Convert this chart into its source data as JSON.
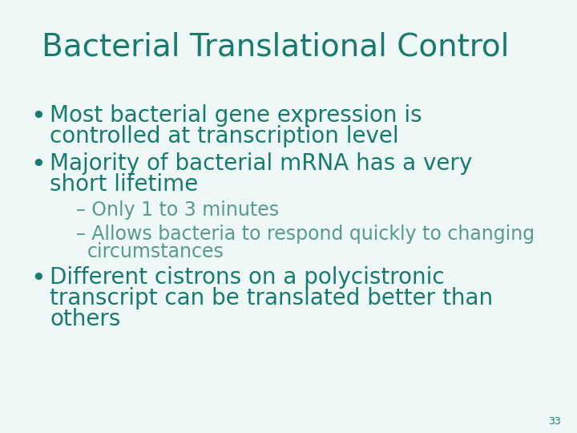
{
  "title": "Bacterial Translational Control",
  "title_color": "#1a7a6e",
  "title_fontsize": 28,
  "background_color": "#eef8f6",
  "text_color": "#1a7a6e",
  "sub_text_color": "#5a9a8a",
  "bullet_color": "#1a7a6e",
  "page_number": "33",
  "items": [
    {
      "level": 1,
      "lines": [
        "Most bacterial gene expression is",
        "controlled at transcription level"
      ],
      "fontsize": 20
    },
    {
      "level": 1,
      "lines": [
        "Majority of bacterial mRNA has a very",
        "short lifetime"
      ],
      "fontsize": 20
    },
    {
      "level": 2,
      "lines": [
        "– Only 1 to 3 minutes"
      ],
      "fontsize": 17
    },
    {
      "level": 2,
      "lines": [
        "– Allows bacteria to respond quickly to changing",
        "  circumstances"
      ],
      "fontsize": 17
    },
    {
      "level": 1,
      "lines": [
        "Different cistrons on a polycistronic",
        "transcript can be translated better than",
        "others"
      ],
      "fontsize": 20
    }
  ]
}
